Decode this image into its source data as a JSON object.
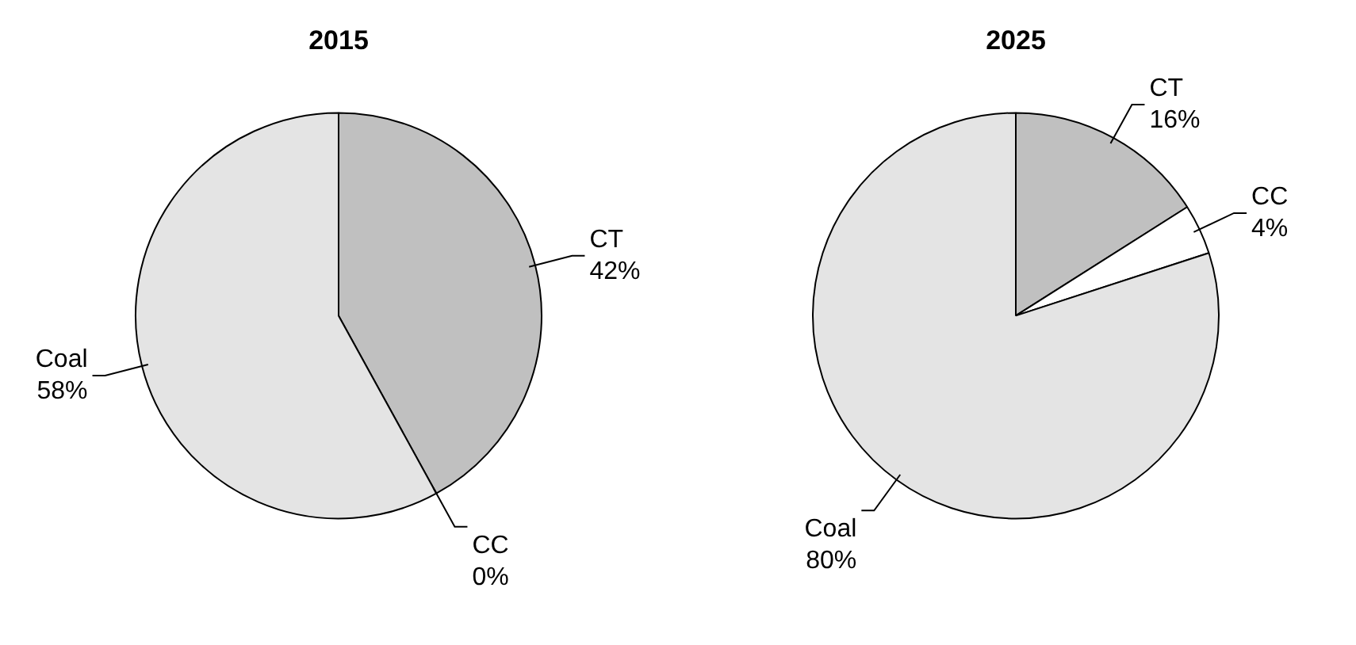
{
  "chart_data": [
    {
      "type": "pie",
      "title": "2015",
      "categories": [
        "CT",
        "CC",
        "Coal"
      ],
      "values": [
        42,
        0,
        58
      ],
      "value_labels": [
        "42%",
        "0%",
        "58%"
      ],
      "colors": [
        "#c0c0c0",
        "#ffffff",
        "#e4e4e4"
      ]
    },
    {
      "type": "pie",
      "title": "2025",
      "categories": [
        "CT",
        "CC",
        "Coal"
      ],
      "values": [
        16,
        4,
        80
      ],
      "value_labels": [
        "16%",
        "4%",
        "80%"
      ],
      "colors": [
        "#c0c0c0",
        "#ffffff",
        "#e4e4e4"
      ]
    }
  ]
}
